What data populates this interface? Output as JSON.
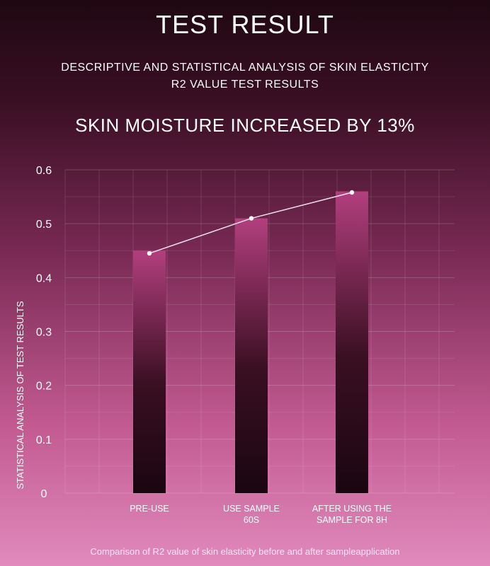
{
  "header": {
    "title": "TEST RESULT",
    "subtitle_line1": "DESCRIPTIVE AND STATISTICAL ANALYSIS OF SKIN ELASTICITY",
    "subtitle_line2": "R2 VALUE TEST RESULTS",
    "headline": "SKIN MOISTURE INCREASED BY 13%"
  },
  "caption": "Comparison of R2 value of skin elasticity before and after sampleapplication",
  "colors": {
    "bar_top": "#b23f7e",
    "bar_bottom": "#1a0610",
    "line": "#f4e2ec",
    "grid": "#ffffff"
  },
  "chart_data": {
    "type": "bar",
    "title": "SKIN MOISTURE INCREASED BY 13%",
    "xlabel": "",
    "ylabel": "STATISTICAL ANALYSIS OF TEST RESULTS",
    "categories": [
      [
        "PRE-USE"
      ],
      [
        "USE SAMPLE",
        "60S"
      ],
      [
        "AFTER USING THE",
        "SAMPLE FOR 8H"
      ]
    ],
    "values": [
      0.45,
      0.51,
      0.56
    ],
    "line_values": [
      0.445,
      0.51,
      0.558
    ],
    "yticks": [
      "0",
      "0.1",
      "0.2",
      "0.3",
      "0.4",
      "0.5",
      "0.6"
    ],
    "ylim": [
      0,
      0.6
    ],
    "grid": true
  }
}
